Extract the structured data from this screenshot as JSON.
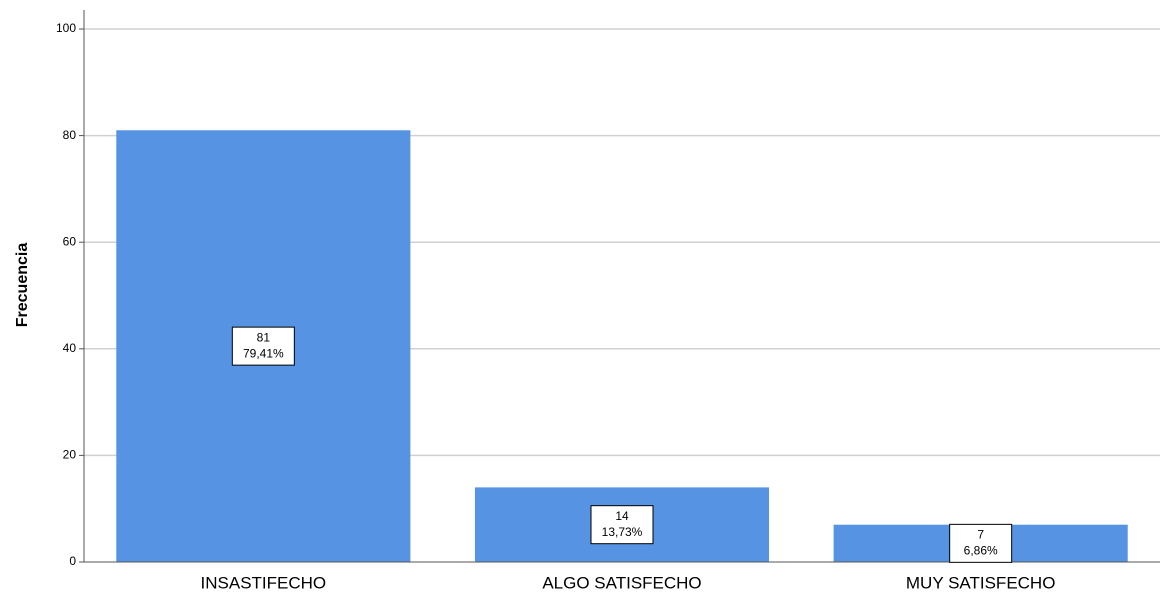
{
  "chart_data": {
    "type": "bar",
    "categories": [
      "INSASTIFECHO",
      "ALGO SATISFECHO",
      "MUY SATISFECHO"
    ],
    "values": [
      81,
      14,
      7
    ],
    "percent_labels": [
      "79,41%",
      "13,73%",
      "6,86%"
    ],
    "title": "",
    "xlabel": "",
    "ylabel": "Frecuencia",
    "ylim": [
      0,
      100
    ],
    "yticks": [
      0,
      20,
      40,
      60,
      80,
      100
    ],
    "grid": true,
    "bar_color": "#5694e3",
    "grid_color": "#d0d0d0"
  }
}
